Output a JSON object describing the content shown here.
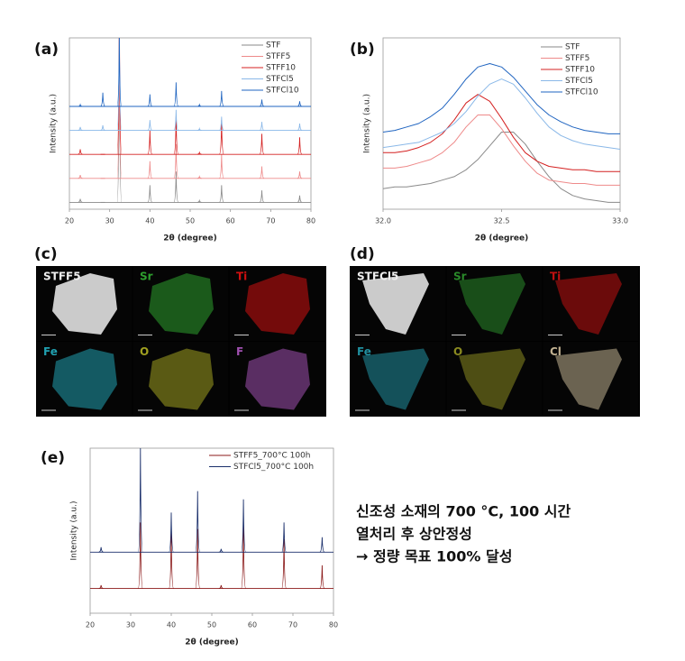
{
  "chart_data": [
    {
      "type": "spectrum",
      "title": "(a)",
      "xlabel": "2θ (degree)",
      "ylabel": "Intensity (a.u.)",
      "x": [
        22.7,
        28.3,
        32.4,
        40.0,
        46.5,
        52.3,
        57.8,
        67.8,
        77.2
      ],
      "series": [
        {
          "name": "STF",
          "color": "#8a8a8a",
          "values": [
            2,
            0,
            100,
            10,
            18,
            1,
            10,
            7,
            4
          ]
        },
        {
          "name": "STFF5",
          "color": "#ee8a8a",
          "values": [
            2,
            0,
            90,
            10,
            20,
            1,
            14,
            7,
            4
          ]
        },
        {
          "name": "STFF10",
          "color": "#d42020",
          "values": [
            3,
            0,
            90,
            14,
            22,
            1,
            20,
            12,
            10
          ]
        },
        {
          "name": "STFCl5",
          "color": "#8ab8e8",
          "values": [
            2,
            3,
            60,
            6,
            12,
            1,
            8,
            5,
            4
          ]
        },
        {
          "name": "STFCl10",
          "color": "#1f64c0",
          "values": [
            1,
            8,
            40,
            7,
            14,
            1,
            9,
            4,
            3
          ]
        }
      ],
      "xlim": [
        20,
        80
      ],
      "xticks": [
        20,
        30,
        40,
        50,
        60,
        70,
        80
      ],
      "ylim": [
        0,
        100
      ],
      "legend": "upper right"
    },
    {
      "type": "line",
      "title": "(b)",
      "xlabel": "2θ (degree)",
      "ylabel": "Intensity (a.u.)",
      "x": [
        32.0,
        32.05,
        32.1,
        32.15,
        32.2,
        32.25,
        32.3,
        32.35,
        32.4,
        32.45,
        32.5,
        32.55,
        32.6,
        32.65,
        32.7,
        32.75,
        32.8,
        32.85,
        32.9,
        32.95,
        33.0
      ],
      "series": [
        {
          "name": "STF",
          "color": "#8a8a8a",
          "values": [
            12,
            13,
            13,
            14,
            15,
            17,
            19,
            23,
            29,
            37,
            45,
            45,
            38,
            28,
            19,
            12,
            8,
            6,
            5,
            4,
            4
          ]
        },
        {
          "name": "STFF5",
          "color": "#ee8a8a",
          "values": [
            24,
            24,
            25,
            27,
            29,
            33,
            39,
            48,
            55,
            55,
            47,
            37,
            28,
            21,
            17,
            16,
            15,
            15,
            14,
            14,
            14
          ]
        },
        {
          "name": "STFF10",
          "color": "#d42020",
          "values": [
            33,
            33,
            34,
            36,
            39,
            44,
            52,
            62,
            67,
            63,
            53,
            42,
            33,
            28,
            25,
            24,
            23,
            23,
            22,
            22,
            22
          ]
        },
        {
          "name": "STFCl5",
          "color": "#8ab8e8",
          "values": [
            36,
            37,
            38,
            39,
            42,
            45,
            50,
            57,
            66,
            73,
            76,
            73,
            65,
            56,
            48,
            43,
            40,
            38,
            37,
            36,
            35
          ]
        },
        {
          "name": "STFCl10",
          "color": "#1f64c0",
          "values": [
            45,
            46,
            48,
            50,
            54,
            59,
            67,
            76,
            83,
            85,
            83,
            77,
            69,
            61,
            55,
            51,
            48,
            46,
            45,
            44,
            44
          ]
        }
      ],
      "xlim": [
        32.0,
        33.0
      ],
      "xticks": [
        {
          "value": 32.0,
          "label": "32.0"
        },
        32.5,
        {
          "value": 33.0,
          "label": "33.0"
        }
      ],
      "ylim": [
        0,
        100
      ],
      "legend": "upper right"
    },
    {
      "type": "spectrum",
      "title": "(e)",
      "xlabel": "2θ (degree)",
      "ylabel": "Intensity (a.u.)",
      "x": [
        22.7,
        32.4,
        40.0,
        46.5,
        52.3,
        57.8,
        67.8,
        77.2
      ],
      "series": [
        {
          "name": "STFF5_700°C 100h",
          "color": "#8b1a1a",
          "values": [
            2,
            40,
            35,
            36,
            2,
            38,
            30,
            14
          ]
        },
        {
          "name": "STFCl5_700°C 100h",
          "color": "#1a2f6b",
          "values": [
            3,
            63,
            24,
            37,
            2,
            32,
            18,
            9
          ]
        }
      ],
      "xlim": [
        20,
        80
      ],
      "xticks": [
        20,
        30,
        40,
        50,
        60,
        70,
        80
      ],
      "ylim": [
        0,
        100
      ],
      "legend": "upper right"
    }
  ],
  "eds_maps": [
    {
      "title": "(c)",
      "tiles": [
        {
          "label": "STFF5",
          "color": "#eeeeee"
        },
        {
          "label": "Sr",
          "color": "#2ea02e"
        },
        {
          "label": "Ti",
          "color": "#d01010"
        },
        {
          "label": "Fe",
          "color": "#20a0b0"
        },
        {
          "label": "O",
          "color": "#a0a020"
        },
        {
          "label": "F",
          "color": "#a050b0"
        }
      ]
    },
    {
      "title": "(d)",
      "tiles": [
        {
          "label": "STFCl5",
          "color": "#eeeeee"
        },
        {
          "label": "Sr",
          "color": "#2a8a2a"
        },
        {
          "label": "Ti",
          "color": "#c01010"
        },
        {
          "label": "Fe",
          "color": "#2090a0"
        },
        {
          "label": "O",
          "color": "#8a8a20"
        },
        {
          "label": "Cl",
          "color": "#c0b090"
        }
      ]
    }
  ],
  "note": [
    "신조성 소재의 700 °C, 100 시간",
    "열처리 후 상안정성",
    "→ 정량 목표 100% 달성"
  ]
}
